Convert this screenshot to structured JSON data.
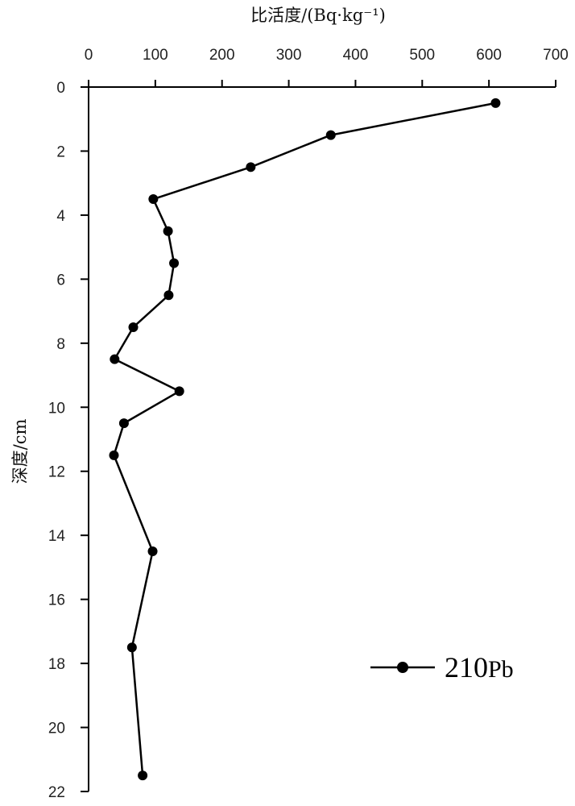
{
  "chart_data": {
    "type": "line",
    "xlabel": "比活度/(Bq·kg⁻¹)",
    "ylabel": "深度/cm",
    "x_axis_position": "top",
    "y_axis_inverted": true,
    "xlim": [
      0,
      700
    ],
    "ylim": [
      0,
      22
    ],
    "x_ticks": [
      "0",
      "100",
      "200",
      "300",
      "400",
      "500",
      "600",
      "700"
    ],
    "y_ticks": [
      "0",
      "2",
      "4",
      "6",
      "8",
      "10",
      "12",
      "14",
      "16",
      "18",
      "20",
      "22"
    ],
    "grid": false,
    "legend_position": "bottom-right",
    "series": [
      {
        "name": "210Pb",
        "legend_main": "210",
        "legend_sub": "Pb",
        "color": "#000000",
        "marker": "circle",
        "points": [
          {
            "activity": 610,
            "depth": 0.5
          },
          {
            "activity": 363,
            "depth": 1.5
          },
          {
            "activity": 243,
            "depth": 2.5
          },
          {
            "activity": 97,
            "depth": 3.5
          },
          {
            "activity": 119,
            "depth": 4.5
          },
          {
            "activity": 128,
            "depth": 5.5
          },
          {
            "activity": 120,
            "depth": 6.5
          },
          {
            "activity": 67,
            "depth": 7.5
          },
          {
            "activity": 39,
            "depth": 8.5
          },
          {
            "activity": 136,
            "depth": 9.5
          },
          {
            "activity": 53,
            "depth": 10.5
          },
          {
            "activity": 38,
            "depth": 11.5
          },
          {
            "activity": 96,
            "depth": 14.5
          },
          {
            "activity": 65,
            "depth": 17.5
          },
          {
            "activity": 81,
            "depth": 21.5
          }
        ]
      }
    ]
  }
}
